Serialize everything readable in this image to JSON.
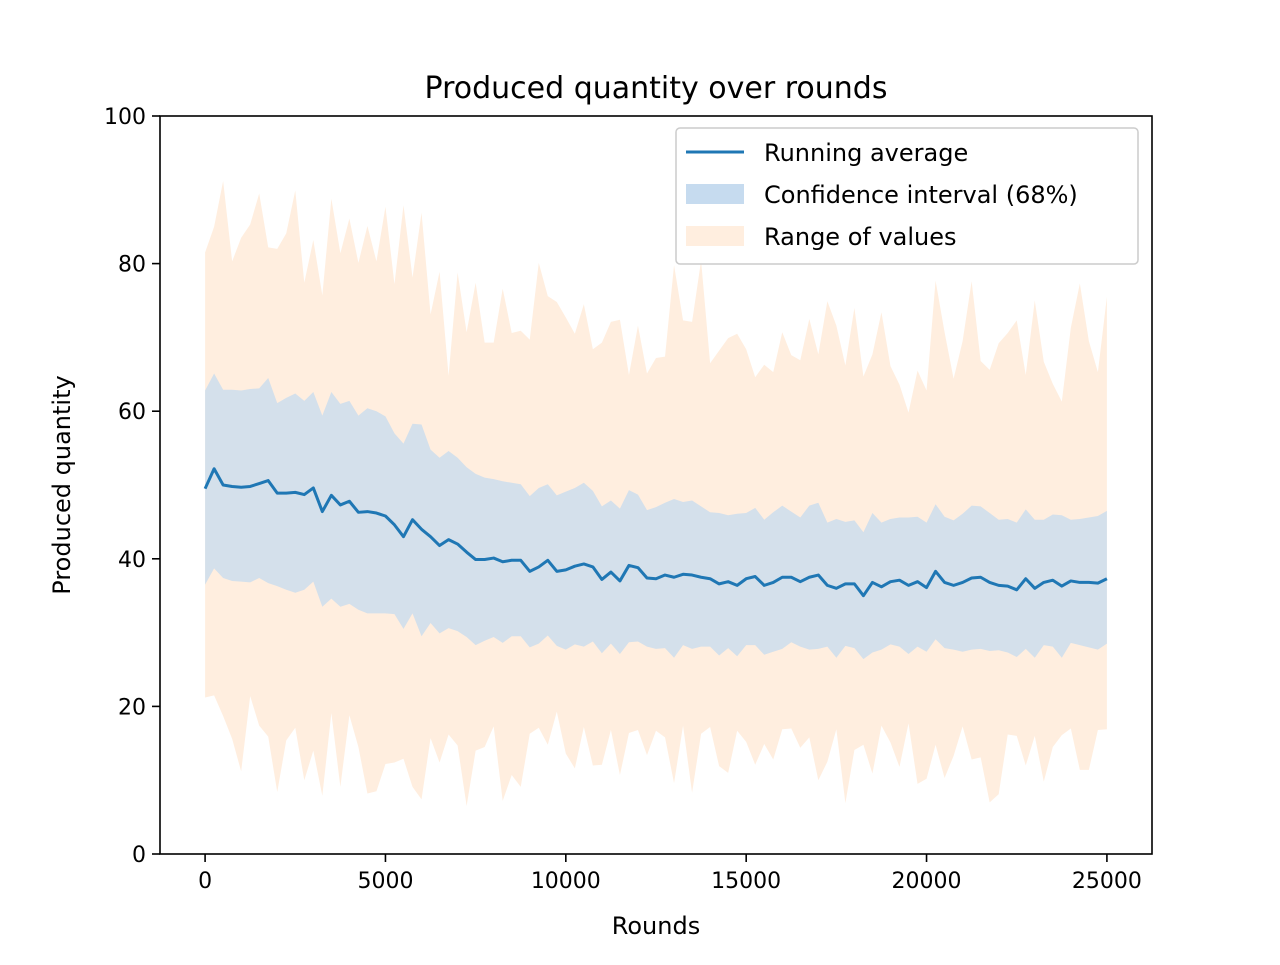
{
  "chart_data": {
    "type": "line",
    "title": "Produced quantity over rounds",
    "xlabel": "Rounds",
    "ylabel": "Produced quantity",
    "xlim": [
      -1250,
      26250
    ],
    "ylim": [
      0,
      100
    ],
    "x_ticks": [
      0,
      5000,
      10000,
      15000,
      20000,
      25000
    ],
    "y_ticks": [
      0,
      20,
      40,
      60,
      80,
      100
    ],
    "grid": false,
    "legend": {
      "placement": "top-right",
      "entries": [
        "Running average",
        "Confidence interval (68%)",
        "Range of values"
      ]
    },
    "colors": {
      "average": "#1f77b4",
      "confidence": "#c6dbef",
      "range": "#ffeedf"
    },
    "x": [
      0,
      250,
      500,
      750,
      1000,
      1250,
      1500,
      1750,
      2000,
      2250,
      2500,
      2750,
      3000,
      3250,
      3500,
      3750,
      4000,
      4250,
      4500,
      4750,
      5000,
      5250,
      5500,
      5750,
      6000,
      6250,
      6500,
      6750,
      7000,
      7250,
      7500,
      7750,
      8000,
      8250,
      8500,
      8750,
      9000,
      9250,
      9500,
      9750,
      10000,
      10250,
      10500,
      10750,
      11000,
      11250,
      11500,
      11750,
      12000,
      12250,
      12500,
      12750,
      13000,
      13250,
      13500,
      13750,
      14000,
      14250,
      14500,
      14750,
      15000,
      15250,
      15500,
      15750,
      16000,
      16250,
      16500,
      16750,
      17000,
      17250,
      17500,
      17750,
      18000,
      18250,
      18500,
      18750,
      19000,
      19250,
      19500,
      19750,
      20000,
      20250,
      20500,
      20750,
      21000,
      21250,
      21500,
      21750,
      22000,
      22250,
      22500,
      22750,
      23000,
      23250,
      23500,
      23750,
      24000,
      24250,
      24500,
      24750,
      25000
    ],
    "series": [
      {
        "name": "Running average",
        "values": [
          49.5,
          52.2,
          50.0,
          49.8,
          49.7,
          49.8,
          50.2,
          50.6,
          48.9,
          48.9,
          49.0,
          48.7,
          49.6,
          46.4,
          48.6,
          47.3,
          47.8,
          46.3,
          46.4,
          46.2,
          45.8,
          44.6,
          43.0,
          45.3,
          44.0,
          43.0,
          41.8,
          42.6,
          42.0,
          40.9,
          39.9,
          39.9,
          40.1,
          39.6,
          39.8,
          39.8,
          38.3,
          38.9,
          39.8,
          38.3,
          38.5,
          39.0,
          39.3,
          38.9,
          37.2,
          38.2,
          37.0,
          39.1,
          38.8,
          37.4,
          37.3,
          37.8,
          37.5,
          37.9,
          37.8,
          37.5,
          37.3,
          36.6,
          36.9,
          36.4,
          37.3,
          37.6,
          36.4,
          36.8,
          37.5,
          37.5,
          36.9,
          37.5,
          37.8,
          36.4,
          36.0,
          36.6,
          36.6,
          35.0,
          36.8,
          36.2,
          36.9,
          37.1,
          36.4,
          36.9,
          36.1,
          38.3,
          36.8,
          36.4,
          36.8,
          37.4,
          37.5,
          36.8,
          36.4,
          36.3,
          35.8,
          37.3,
          36.0,
          36.8,
          37.1,
          36.3,
          37.0,
          36.8,
          36.8,
          36.7,
          37.3
        ]
      },
      {
        "name": "Confidence interval (68%)",
        "lower": [
          36.5,
          38.7,
          37.4,
          37.0,
          36.9,
          36.8,
          37.4,
          36.7,
          36.3,
          35.8,
          35.4,
          35.8,
          36.9,
          33.5,
          34.6,
          33.5,
          33.9,
          33.1,
          32.6,
          32.6,
          32.6,
          32.5,
          30.5,
          32.6,
          29.5,
          31.3,
          29.9,
          30.6,
          30.2,
          29.4,
          28.3,
          28.9,
          29.4,
          28.6,
          29.5,
          29.5,
          28.0,
          28.5,
          29.6,
          28.2,
          27.7,
          28.4,
          28.1,
          28.8,
          27.2,
          28.5,
          27.1,
          28.7,
          28.8,
          28.1,
          27.8,
          27.9,
          26.6,
          28.3,
          27.8,
          28.1,
          28.1,
          26.9,
          27.9,
          26.8,
          28.3,
          28.3,
          27.0,
          27.4,
          27.8,
          28.7,
          28.1,
          27.7,
          27.8,
          28.1,
          26.6,
          28.2,
          27.9,
          26.4,
          27.3,
          27.7,
          28.4,
          28.1,
          27.1,
          28.1,
          27.4,
          29.1,
          27.9,
          27.7,
          27.4,
          27.7,
          27.8,
          27.5,
          27.6,
          27.3,
          26.7,
          27.8,
          26.6,
          28.3,
          28.1,
          26.6,
          28.6,
          28.3,
          28.0,
          27.7,
          28.5
        ],
        "upper": [
          62.8,
          65.1,
          62.9,
          62.9,
          62.8,
          63.0,
          63.1,
          64.5,
          61.1,
          61.8,
          62.4,
          61.4,
          62.6,
          59.4,
          62.6,
          61.0,
          61.4,
          59.4,
          60.4,
          60.0,
          59.3,
          57.0,
          55.6,
          58.3,
          58.2,
          54.8,
          53.7,
          54.6,
          53.7,
          52.4,
          51.5,
          51.0,
          50.8,
          50.5,
          50.3,
          50.1,
          48.5,
          49.6,
          50.1,
          48.6,
          49.1,
          49.6,
          50.3,
          49.2,
          47.1,
          47.9,
          46.8,
          49.3,
          48.7,
          46.6,
          47.0,
          47.6,
          48.1,
          47.7,
          47.9,
          47.1,
          46.3,
          46.2,
          45.9,
          46.1,
          46.2,
          46.9,
          45.3,
          46.3,
          47.2,
          46.4,
          45.6,
          47.2,
          47.6,
          44.9,
          45.4,
          45.0,
          45.2,
          43.6,
          46.2,
          44.9,
          45.4,
          45.6,
          45.6,
          45.7,
          44.9,
          47.4,
          45.7,
          45.2,
          46.1,
          47.2,
          47.1,
          46.2,
          45.3,
          45.4,
          44.9,
          46.7,
          45.3,
          45.3,
          46.0,
          45.9,
          45.3,
          45.4,
          45.6,
          45.8,
          46.5
        ]
      },
      {
        "name": "Range of values",
        "lower": [
          21.2,
          21.5,
          18.7,
          15.6,
          11.2,
          21.4,
          17.4,
          15.9,
          8.4,
          15.4,
          17.1,
          10.0,
          14.0,
          7.9,
          19.1,
          9.1,
          18.8,
          14.5,
          8.2,
          8.5,
          12.2,
          12.4,
          12.9,
          9.1,
          7.4,
          15.7,
          12.4,
          16.2,
          14.7,
          6.5,
          14.0,
          14.5,
          17.3,
          7.2,
          10.7,
          9.1,
          16.3,
          17.1,
          14.8,
          19.3,
          13.6,
          11.6,
          17.2,
          12.0,
          12.1,
          16.8,
          10.7,
          16.4,
          16.8,
          13.4,
          16.7,
          15.8,
          9.6,
          17.4,
          8.3,
          16.3,
          17.2,
          11.9,
          11.0,
          16.7,
          15.2,
          12.1,
          14.9,
          12.8,
          16.9,
          17.0,
          14.4,
          15.8,
          10.0,
          12.5,
          16.9,
          6.9,
          14.1,
          14.8,
          10.9,
          17.4,
          15.1,
          11.8,
          17.7,
          9.5,
          10.2,
          14.8,
          10.3,
          13.3,
          17.3,
          12.8,
          13.1,
          7.0,
          8.1,
          16.2,
          16.0,
          12.0,
          16.0,
          9.8,
          14.5,
          16.1,
          17.0,
          11.4,
          11.4,
          16.8,
          16.9
        ],
        "upper": [
          81.5,
          85.0,
          91.2,
          80.3,
          83.5,
          85.3,
          89.5,
          82.2,
          82.0,
          84.1,
          89.9,
          77.4,
          83.2,
          75.7,
          88.8,
          81.4,
          86.1,
          80.1,
          85.1,
          80.3,
          87.7,
          77.2,
          87.9,
          78.1,
          86.9,
          73.1,
          78.9,
          64.8,
          78.8,
          70.7,
          77.4,
          69.3,
          69.3,
          76.6,
          70.6,
          70.9,
          69.7,
          80.1,
          75.6,
          74.8,
          72.7,
          70.5,
          74.5,
          68.4,
          69.3,
          72.1,
          72.4,
          64.9,
          71.6,
          65.1,
          67.2,
          67.4,
          79.8,
          72.3,
          72.1,
          80.4,
          66.5,
          68.2,
          69.9,
          70.5,
          68.4,
          64.6,
          66.3,
          65.3,
          70.7,
          67.6,
          66.9,
          72.5,
          67.7,
          74.9,
          71.6,
          66.2,
          74.0,
          64.7,
          67.7,
          73.4,
          66.1,
          63.6,
          59.8,
          65.5,
          62.8,
          77.7,
          70.7,
          64.4,
          69.5,
          77.6,
          66.8,
          65.6,
          69.2,
          70.6,
          72.3,
          64.9,
          75.0,
          66.7,
          63.7,
          61.3,
          71.3,
          77.3,
          69.5,
          65.3,
          75.5
        ]
      }
    ]
  }
}
